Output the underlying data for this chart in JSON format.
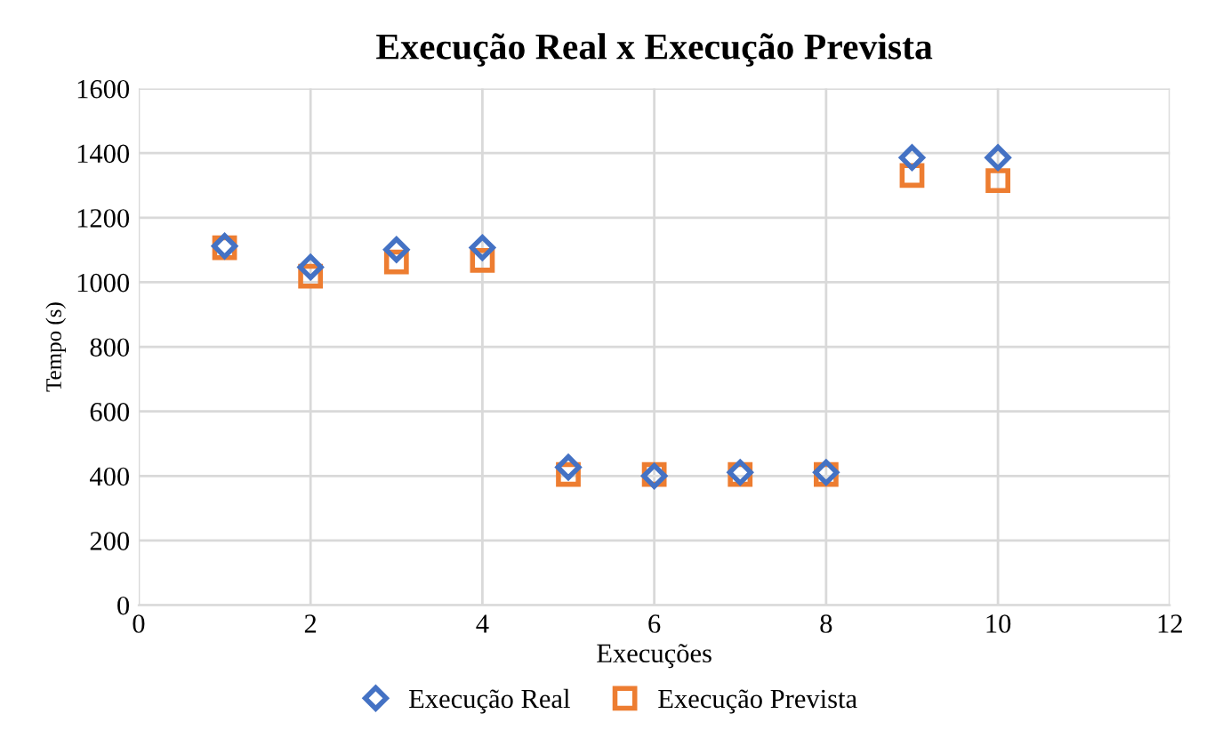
{
  "chart_data": {
    "type": "scatter",
    "title": "Execução Real x Execução Prevista",
    "xlabel": "Execuções",
    "ylabel": "Tempo (s)",
    "x": [
      1,
      2,
      3,
      4,
      5,
      6,
      7,
      8,
      9,
      10
    ],
    "series": [
      {
        "name": "Execução Real",
        "color": "#4472c4",
        "marker": "diamond",
        "values": [
          1112,
          1047,
          1101,
          1107,
          427,
          400,
          411,
          411,
          1386,
          1386
        ]
      },
      {
        "name": "Execução Prevista",
        "color": "#ed7d31",
        "marker": "square",
        "values": [
          1107,
          1019,
          1063,
          1068,
          405,
          405,
          405,
          405,
          1331,
          1315
        ]
      }
    ],
    "xlim": [
      0,
      12
    ],
    "xticks": [
      0,
      2,
      4,
      6,
      8,
      10,
      12
    ],
    "ylim": [
      0,
      1600
    ],
    "yticks": [
      0,
      200,
      400,
      600,
      800,
      1000,
      1200,
      1400,
      1600
    ],
    "grid": true,
    "legend": "bottom"
  }
}
